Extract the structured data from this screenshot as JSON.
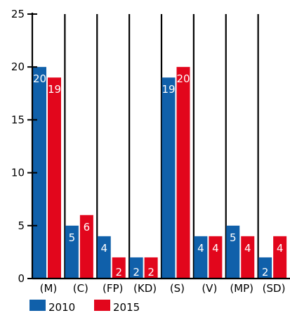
{
  "chart_data": {
    "type": "bar",
    "title": "",
    "xlabel": "",
    "ylabel": "",
    "ylim": [
      0,
      25
    ],
    "yticks": [
      0,
      5,
      10,
      15,
      20,
      25
    ],
    "grid": false,
    "legend_position": "bottom-left",
    "categories": [
      "(M)",
      "(C)",
      "(FP)",
      "(KD)",
      "(S)",
      "(V)",
      "(MP)",
      "(SD)"
    ],
    "series": [
      {
        "name": "2010",
        "color": "#1060aa",
        "values": [
          20,
          5,
          4,
          2,
          19,
          4,
          5,
          2
        ]
      },
      {
        "name": "2015",
        "color": "#e2061c",
        "values": [
          19,
          6,
          2,
          2,
          20,
          4,
          4,
          4
        ]
      }
    ]
  }
}
